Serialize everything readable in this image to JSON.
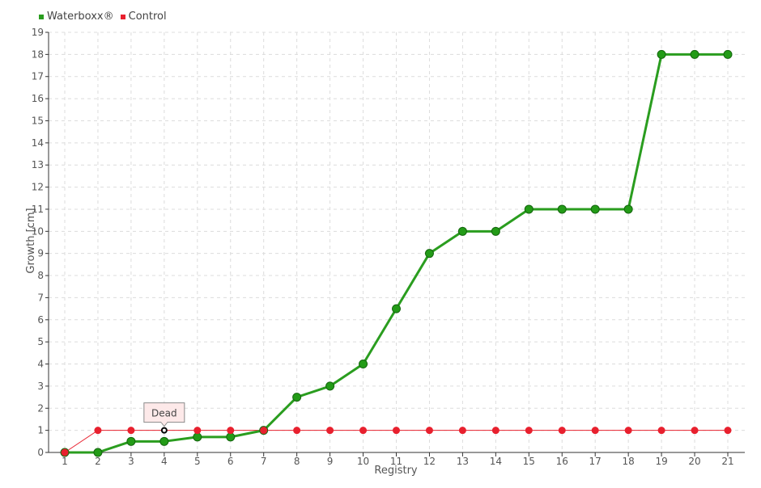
{
  "colors": {
    "waterboxx": "#2a9d1f",
    "waterboxx_marker": "#239b17",
    "waterboxx_marker_stroke": "#14660e",
    "control": "#e8202e",
    "grid": "#dcdcdc",
    "axis": "#333333",
    "tick_text": "#555555",
    "tooltip_bg": "#fde9e9",
    "tooltip_border": "#8a8a8a"
  },
  "chart_data": {
    "type": "line",
    "xlabel": "Registry",
    "ylabel": "Growth [cm]",
    "categories": [
      "1",
      "2",
      "3",
      "4",
      "5",
      "6",
      "7",
      "8",
      "9",
      "10",
      "11",
      "12",
      "13",
      "14",
      "15",
      "16",
      "17",
      "18",
      "19",
      "20",
      "21"
    ],
    "yticks": [
      "0",
      "1",
      "2",
      "3",
      "4",
      "5",
      "6",
      "7",
      "8",
      "9",
      "10",
      "11",
      "12",
      "13",
      "14",
      "15",
      "16",
      "17",
      "18",
      "19"
    ],
    "ylim": [
      0,
      19
    ],
    "grid": true,
    "legend_position": "top-left",
    "series": [
      {
        "name": "Waterboxx®",
        "values": [
          0,
          0,
          0.5,
          0.5,
          0.7,
          0.7,
          1,
          2.5,
          3,
          4,
          6.5,
          9,
          10,
          10,
          11,
          11,
          11,
          11,
          18,
          18,
          18
        ]
      },
      {
        "name": "Control",
        "values": [
          0,
          1,
          1,
          1,
          1,
          1,
          1,
          1,
          1,
          1,
          1,
          1,
          1,
          1,
          1,
          1,
          1,
          1,
          1,
          1,
          1
        ]
      }
    ],
    "annotation": {
      "text": "Dead",
      "series": "Control",
      "index": 3
    }
  }
}
